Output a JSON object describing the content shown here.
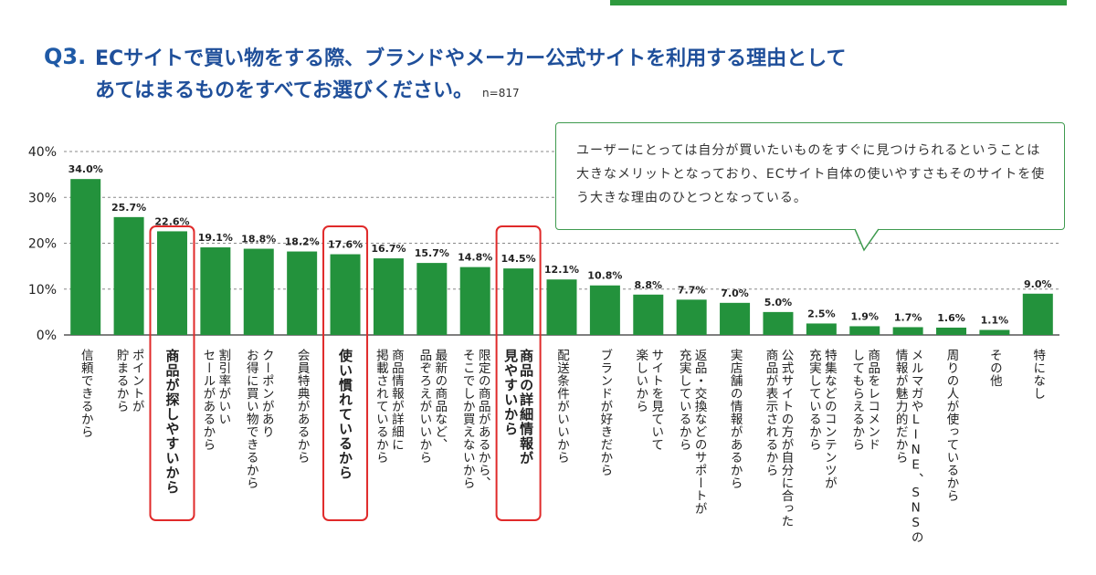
{
  "question": {
    "number": "Q3.",
    "line1": "ECサイトで買い物をする際、ブランドやメーカー公式サイトを利用する理由として",
    "line2": "あてはまるものをすべてお選びください。",
    "sample": "n=817"
  },
  "comment": "ユーザーにとっては自分が買いたいものをすぐに見つけられるということは大きなメリットとなっており、ECサイト自体の使いやすさもそのサイトを使う大きな理由のひとつとなっている。",
  "chart_data": {
    "type": "bar",
    "categories": [
      "信頼できるから",
      "ポイントが 貯まるから",
      "商品が探しやすいから",
      "割引率がいい セールがあるから",
      "クーポンがあり お得に買い物できるから",
      "会員特典があるから",
      "使い慣れているから",
      "商品情報が詳細に 掲載されているから",
      "最新の商品など、 品ぞろえがいいから",
      "限定の商品があるから、 そこでしか買えないから",
      "商品の詳細情報が 見やすいから",
      "配送条件がいいから",
      "ブランドが好きだから",
      "サイトを見ていて 楽しいから",
      "返品・交換などのサポートが 充実しているから",
      "実店舗の情報があるから",
      "公式サイトの方が自分に合った 商品が表示されるから",
      "特集などのコンテンツが 充実しているから",
      "商品をレコメンド してもらえるから",
      "メルマガやLINE、SNSの 情報が魅力的だから",
      "周りの人が使っているから",
      "その他",
      "特になし"
    ],
    "values": [
      34.0,
      25.7,
      22.6,
      19.1,
      18.8,
      18.2,
      17.6,
      16.7,
      15.7,
      14.8,
      14.5,
      12.1,
      10.8,
      8.8,
      7.7,
      7.0,
      5.0,
      2.5,
      1.9,
      1.7,
      1.6,
      1.1,
      9.0
    ],
    "value_labels": [
      "34.0%",
      "25.7%",
      "22.6%",
      "19.1%",
      "18.8%",
      "18.2%",
      "17.6%",
      "16.7%",
      "15.7%",
      "14.8%",
      "14.5%",
      "12.1%",
      "10.8%",
      "8.8%",
      "7.7%",
      "7.0%",
      "5.0%",
      "2.5%",
      "1.9%",
      "1.7%",
      "1.6%",
      "1.1%",
      "9.0%"
    ],
    "yticks": [
      "0%",
      "10%",
      "20%",
      "30%",
      "40%"
    ],
    "ylim": [
      0,
      40
    ],
    "grid": true,
    "highlighted": [
      2,
      6,
      10
    ],
    "bar_color": "#23923c",
    "highlight_color": "#e02a2a"
  }
}
